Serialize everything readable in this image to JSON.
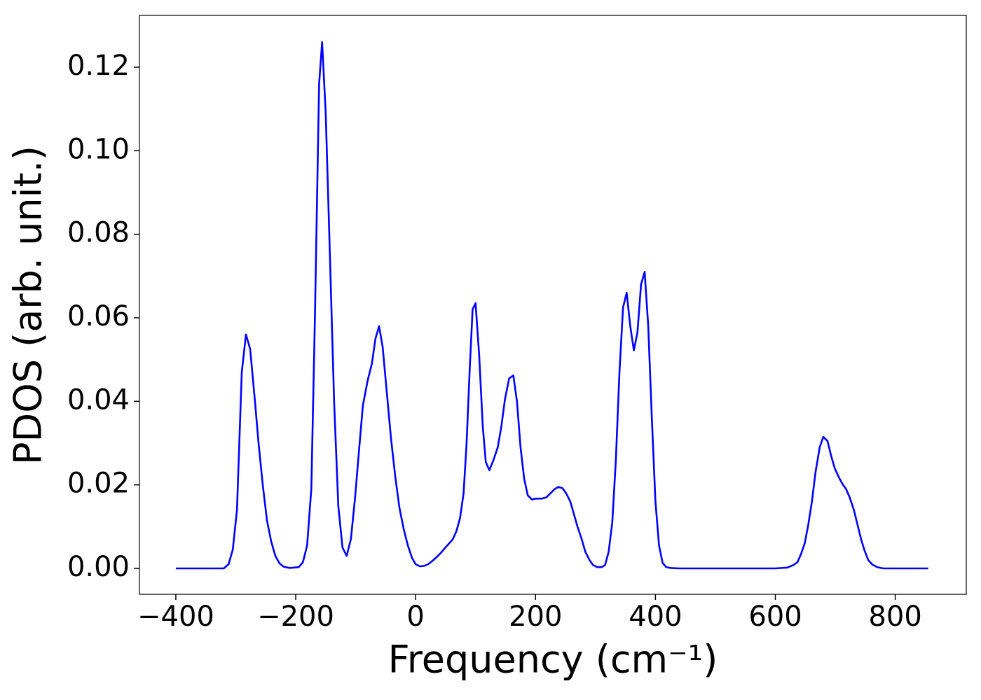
{
  "chart_data": {
    "type": "line",
    "x_label": "Frequency (cm⁻¹)",
    "y_label": "PDOS (arb. unit.)",
    "x": [
      -400,
      -320,
      -312,
      -305,
      -298,
      -290,
      -283,
      -276,
      -268,
      -262,
      -255,
      -248,
      -241,
      -234,
      -227,
      -220,
      -210,
      -195,
      -188,
      -181,
      -174,
      -168,
      -161,
      -156,
      -150,
      -143,
      -136,
      -129,
      -122,
      -115,
      -108,
      -101,
      -94,
      -88,
      -80,
      -73,
      -67,
      -61,
      -55,
      -48,
      -41,
      -34,
      -27,
      -20,
      -13,
      -6,
      0,
      7,
      14,
      21,
      28,
      35,
      42,
      49,
      56,
      62,
      68,
      74,
      80,
      85,
      90,
      95,
      100,
      106,
      112,
      117,
      123,
      130,
      137,
      143,
      149,
      156,
      163,
      169,
      175,
      181,
      187,
      194,
      200,
      210,
      218,
      225,
      232,
      238,
      245,
      251,
      258,
      264,
      270,
      277,
      283,
      290,
      296,
      303,
      310,
      316,
      322,
      328,
      334,
      340,
      346,
      352,
      358,
      364,
      370,
      376,
      382,
      388,
      394,
      400,
      406,
      412,
      418,
      426,
      440,
      600,
      620,
      630,
      637,
      643,
      649,
      655,
      661,
      667,
      674,
      680,
      687,
      693,
      699,
      706,
      712,
      718,
      724,
      731,
      737,
      743,
      749,
      755,
      762,
      770,
      780,
      855
    ],
    "series": [
      {
        "name": "PDOS",
        "color": "#0000ff",
        "values": [
          0,
          0,
          0.001,
          0.0045,
          0.014,
          0.047,
          0.056,
          0.0525,
          0.04,
          0.03,
          0.02,
          0.0115,
          0.0065,
          0.003,
          0.0012,
          0.0004,
          0.0001,
          0.0003,
          0.0015,
          0.0055,
          0.019,
          0.06,
          0.116,
          0.126,
          0.109,
          0.075,
          0.04,
          0.015,
          0.005,
          0.003,
          0.007,
          0.017,
          0.029,
          0.039,
          0.045,
          0.049,
          0.055,
          0.058,
          0.053,
          0.042,
          0.031,
          0.022,
          0.0145,
          0.0095,
          0.0055,
          0.0025,
          0.001,
          0.0005,
          0.0006,
          0.001,
          0.0018,
          0.0027,
          0.0037,
          0.0049,
          0.006,
          0.007,
          0.0089,
          0.012,
          0.018,
          0.03,
          0.047,
          0.062,
          0.0635,
          0.051,
          0.034,
          0.0255,
          0.0235,
          0.026,
          0.029,
          0.034,
          0.0405,
          0.0455,
          0.0462,
          0.04,
          0.029,
          0.0215,
          0.0175,
          0.0165,
          0.0167,
          0.0167,
          0.017,
          0.018,
          0.019,
          0.0195,
          0.0192,
          0.018,
          0.016,
          0.013,
          0.01,
          0.007,
          0.004,
          0.002,
          0.0008,
          0.0003,
          0.0003,
          0.0008,
          0.004,
          0.011,
          0.026,
          0.047,
          0.0625,
          0.066,
          0.058,
          0.0522,
          0.0565,
          0.068,
          0.071,
          0.058,
          0.036,
          0.016,
          0.0055,
          0.0013,
          0.0003,
          0.0001,
          0,
          0,
          0.0002,
          0.0008,
          0.0015,
          0.0035,
          0.006,
          0.0105,
          0.016,
          0.023,
          0.029,
          0.0315,
          0.0305,
          0.027,
          0.024,
          0.0218,
          0.0202,
          0.019,
          0.017,
          0.014,
          0.0105,
          0.007,
          0.0042,
          0.002,
          0.0009,
          0.0003,
          0,
          0
        ]
      }
    ],
    "xlim": [
      -460.7,
      918.5
    ],
    "xticks": [
      {
        "value": -400,
        "label": "−400"
      },
      {
        "value": -200,
        "label": "−200"
      },
      0,
      200,
      400,
      600,
      800
    ],
    "ylim": [
      -0.0062,
      0.1324
    ],
    "yticks": [
      {
        "value": 0,
        "label": "0.00"
      },
      0.02,
      0.04,
      0.06,
      0.08,
      {
        "value": 0.1,
        "label": "0.10"
      },
      0.12
    ],
    "grid": false
  }
}
